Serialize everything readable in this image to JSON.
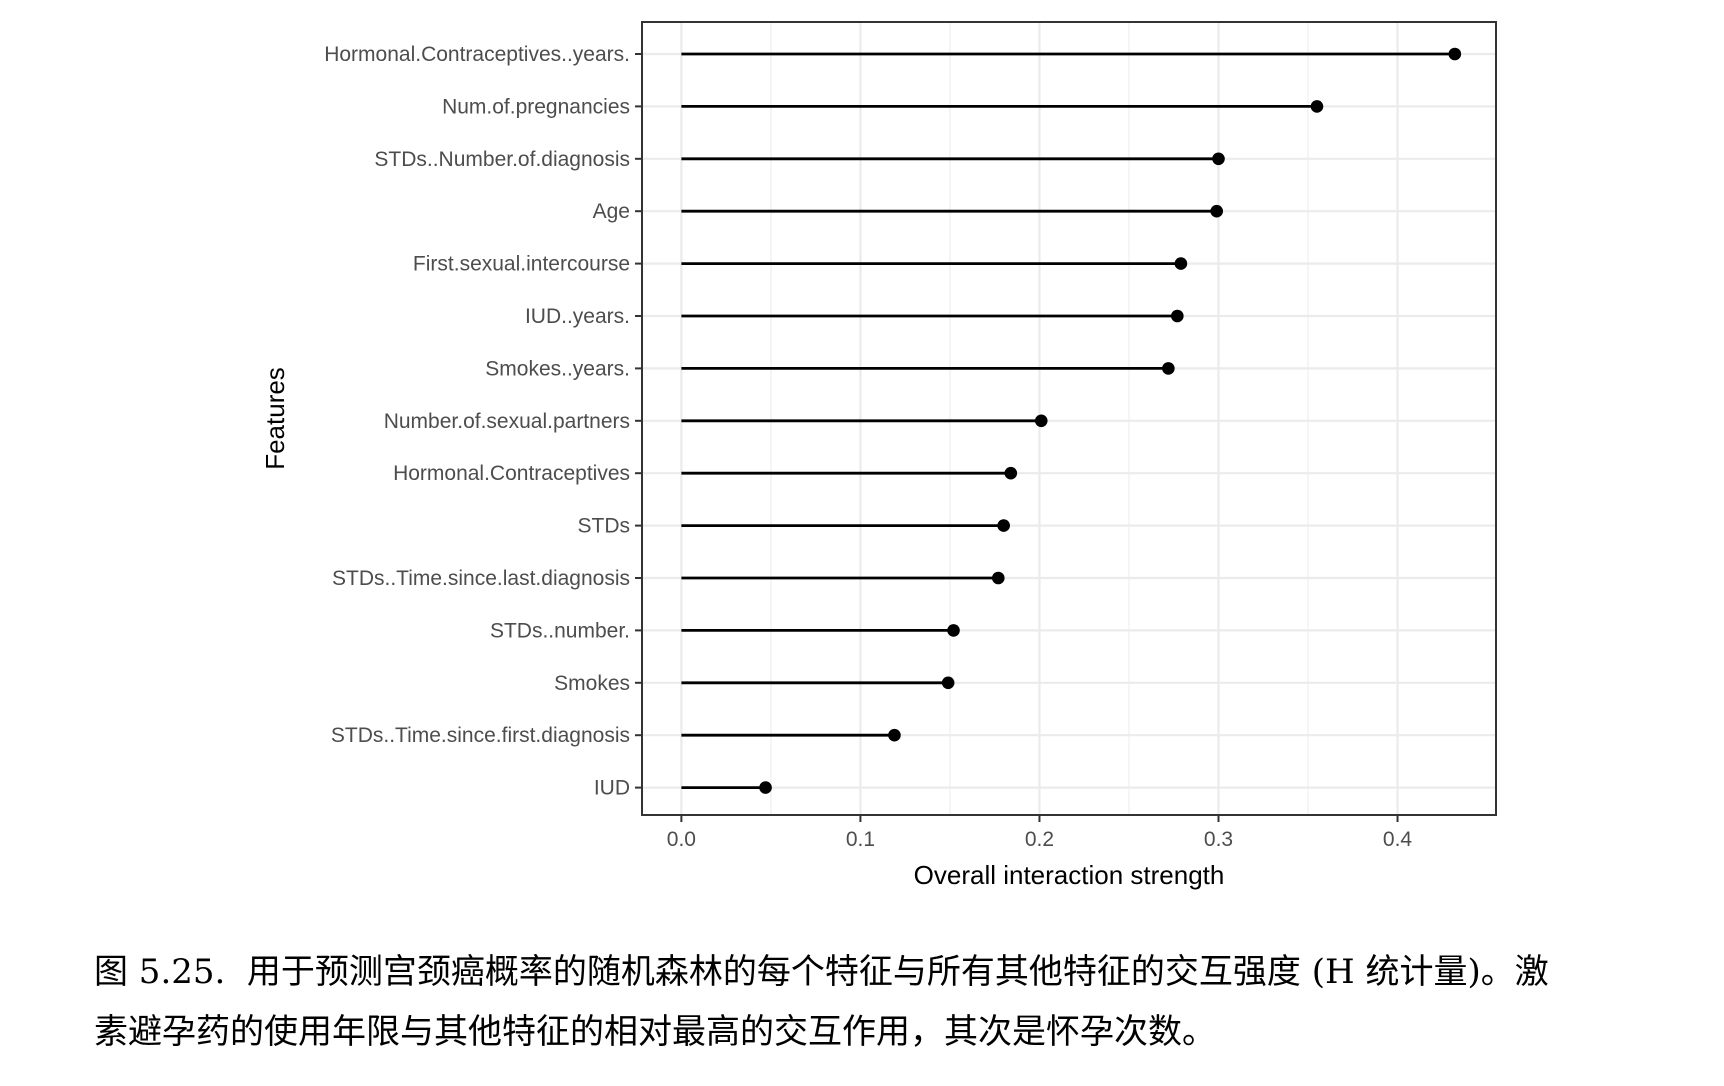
{
  "chart_data": {
    "type": "lollipop",
    "title": "",
    "xlabel": "Overall interaction strength",
    "ylabel": "Features",
    "xlim": [
      -0.022,
      0.455
    ],
    "xticks": [
      0.0,
      0.1,
      0.2,
      0.3,
      0.4
    ],
    "xtick_labels": [
      "0.0",
      "0.1",
      "0.2",
      "0.3",
      "0.4"
    ],
    "grid": true,
    "legend": "none",
    "categories": [
      "Hormonal.Contraceptives..years.",
      "Num.of.pregnancies",
      "STDs..Number.of.diagnosis",
      "Age",
      "First.sexual.intercourse",
      "IUD..years.",
      "Smokes..years.",
      "Number.of.sexual.partners",
      "Hormonal.Contraceptives",
      "STDs",
      "STDs..Time.since.last.diagnosis",
      "STDs..number.",
      "Smokes",
      "STDs..Time.since.first.diagnosis",
      "IUD"
    ],
    "values": [
      0.432,
      0.355,
      0.3,
      0.299,
      0.279,
      0.277,
      0.272,
      0.201,
      0.184,
      0.18,
      0.177,
      0.152,
      0.149,
      0.119,
      0.047
    ],
    "colors": {
      "marker": "#000000",
      "panel_border": "#333333",
      "grid_major": "#ebebeb",
      "grid_minor": "#f2f2f2",
      "tick_text": "#4d4d4d"
    }
  },
  "caption": {
    "line1": "图 5.25.  用于预测宫颈癌概率的随机森林的每个特征与所有其他特征的交互强度 (H 统计量)。激",
    "line2": "素避孕药的使用年限与其他特征的相对最高的交互作用，其次是怀孕次数。"
  }
}
